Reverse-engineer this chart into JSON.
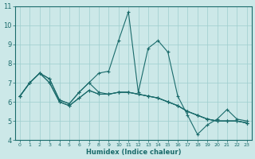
{
  "xlabel": "Humidex (Indice chaleur)",
  "xlim": [
    -0.5,
    23.5
  ],
  "ylim": [
    4,
    11
  ],
  "yticks": [
    4,
    5,
    6,
    7,
    8,
    9,
    10,
    11
  ],
  "xticks": [
    0,
    1,
    2,
    3,
    4,
    5,
    6,
    7,
    8,
    9,
    10,
    11,
    12,
    13,
    14,
    15,
    16,
    17,
    18,
    19,
    20,
    21,
    22,
    23
  ],
  "bg_color": "#cce8e8",
  "grid_color": "#9ecece",
  "line_color": "#1a6b6b",
  "series": [
    [
      6.3,
      7.0,
      7.5,
      7.2,
      6.1,
      5.9,
      6.5,
      7.0,
      7.5,
      7.6,
      9.2,
      10.7,
      6.5,
      8.8,
      9.2,
      8.6,
      6.3,
      5.3,
      4.3,
      4.8,
      5.1,
      5.6,
      5.1,
      5.0
    ],
    [
      6.3,
      7.0,
      7.5,
      7.2,
      6.1,
      5.9,
      6.5,
      7.0,
      6.5,
      6.4,
      6.5,
      6.5,
      6.4,
      6.3,
      6.2,
      6.0,
      5.8,
      5.5,
      5.3,
      5.1,
      5.0,
      5.0,
      5.0,
      4.9
    ],
    [
      6.3,
      7.0,
      7.5,
      7.0,
      6.0,
      5.8,
      6.2,
      6.6,
      6.4,
      6.4,
      6.5,
      6.5,
      6.4,
      6.3,
      6.2,
      6.0,
      5.8,
      5.5,
      5.3,
      5.1,
      5.0,
      5.0,
      5.0,
      4.9
    ],
    [
      6.3,
      7.0,
      7.5,
      7.0,
      6.0,
      5.8,
      6.2,
      6.6,
      6.4,
      6.4,
      6.5,
      6.5,
      6.4,
      6.3,
      6.2,
      6.0,
      5.8,
      5.5,
      5.3,
      5.1,
      5.0,
      5.0,
      5.0,
      4.9
    ]
  ]
}
